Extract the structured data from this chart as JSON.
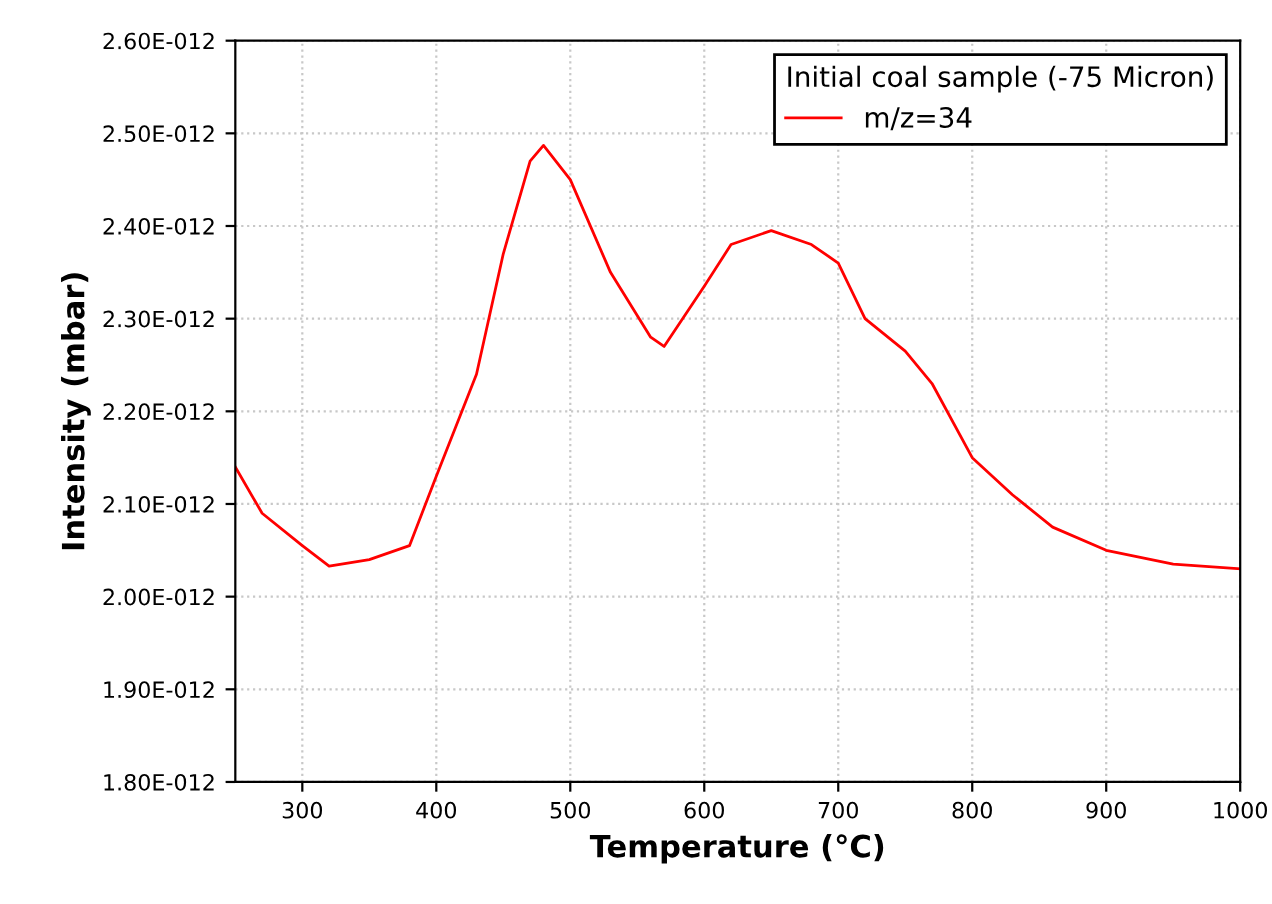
{
  "chart_data": {
    "type": "line",
    "xlabel": "Temperature (°C)",
    "ylabel": "Intensity (mbar)",
    "legend_title": "Initial coal sample (-75 Micron)",
    "legend": "top right",
    "grid": true,
    "marker": "none",
    "line_style": "solid",
    "x": [
      250,
      270,
      300,
      320,
      350,
      380,
      400,
      430,
      450,
      470,
      480,
      500,
      530,
      560,
      570,
      600,
      620,
      650,
      680,
      700,
      720,
      750,
      770,
      800,
      830,
      860,
      900,
      950,
      1000
    ],
    "series": [
      {
        "name": "m/z=34",
        "color": "#ff0000",
        "values": [
          2.14e-12,
          2.09e-12,
          2.055e-12,
          2.033e-12,
          2.04e-12,
          2.055e-12,
          2.13e-12,
          2.24e-12,
          2.37e-12,
          2.47e-12,
          2.487e-12,
          2.45e-12,
          2.35e-12,
          2.28e-12,
          2.27e-12,
          2.335e-12,
          2.38e-12,
          2.395e-12,
          2.38e-12,
          2.36e-12,
          2.3e-12,
          2.265e-12,
          2.23e-12,
          2.15e-12,
          2.11e-12,
          2.075e-12,
          2.05e-12,
          2.035e-12,
          2.03e-12
        ]
      }
    ],
    "xlim": [
      250,
      1000
    ],
    "xticks": [
      300,
      400,
      500,
      600,
      700,
      800,
      900,
      1000
    ],
    "ylim": [
      1.8e-12,
      2.6e-12
    ],
    "yticks": [
      {
        "value": 1.8e-12,
        "label": "1.80E-012"
      },
      {
        "value": 1.9e-12,
        "label": "1.90E-012"
      },
      {
        "value": 2e-12,
        "label": "2.00E-012"
      },
      {
        "value": 2.1e-12,
        "label": "2.10E-012"
      },
      {
        "value": 2.2e-12,
        "label": "2.20E-012"
      },
      {
        "value": 2.3e-12,
        "label": "2.30E-012"
      },
      {
        "value": 2.4e-12,
        "label": "2.40E-012"
      },
      {
        "value": 2.5e-12,
        "label": "2.50E-012"
      },
      {
        "value": 2.6e-12,
        "label": "2.60E-012"
      }
    ]
  }
}
